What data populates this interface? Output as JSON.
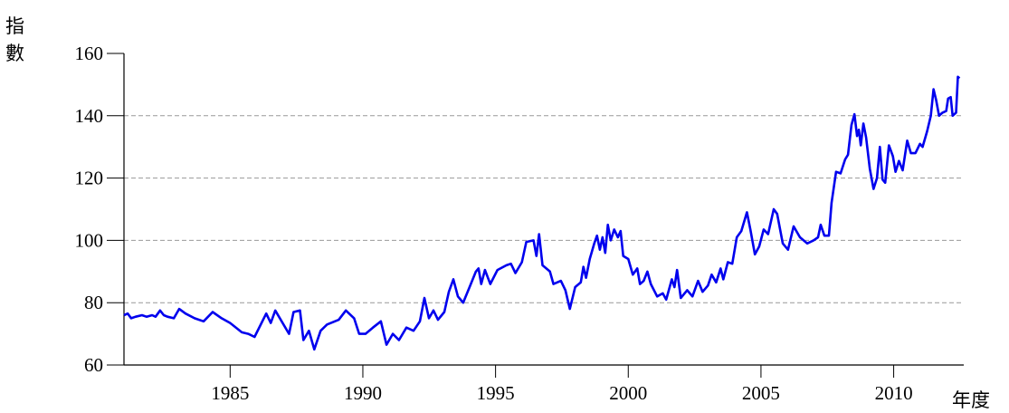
{
  "chart_data": {
    "type": "line",
    "y_label": "指數",
    "x_label": "年度",
    "x": [
      1981.0,
      1981.14,
      1981.27,
      1981.44,
      1981.68,
      1981.85,
      1982.06,
      1982.19,
      1982.36,
      1982.5,
      1982.64,
      1982.88,
      1983.08,
      1983.32,
      1983.66,
      1984.0,
      1984.34,
      1984.68,
      1985.0,
      1985.44,
      1985.68,
      1985.92,
      1986.36,
      1986.53,
      1986.7,
      1987.22,
      1987.39,
      1987.63,
      1987.76,
      1987.97,
      1988.17,
      1988.41,
      1988.65,
      1989.09,
      1989.36,
      1989.67,
      1989.86,
      1990.1,
      1990.38,
      1990.68,
      1990.89,
      1991.13,
      1991.36,
      1991.64,
      1991.91,
      1992.15,
      1992.32,
      1992.49,
      1992.66,
      1992.83,
      1993.07,
      1993.24,
      1993.41,
      1993.58,
      1993.78,
      1994.02,
      1994.26,
      1994.36,
      1994.46,
      1994.6,
      1994.8,
      1995.07,
      1995.41,
      1995.58,
      1995.75,
      1995.99,
      1996.16,
      1996.43,
      1996.54,
      1996.64,
      1996.77,
      1997.05,
      1997.18,
      1997.46,
      1997.63,
      1997.8,
      1998.0,
      1998.21,
      1998.31,
      1998.41,
      1998.55,
      1998.72,
      1998.82,
      1998.93,
      1999.03,
      1999.13,
      1999.23,
      1999.34,
      1999.47,
      1999.61,
      1999.71,
      1999.81,
      2000.0,
      2000.17,
      2000.34,
      2000.44,
      2000.58,
      2000.72,
      2000.85,
      2001.09,
      2001.3,
      2001.43,
      2001.64,
      2001.74,
      2001.84,
      2001.98,
      2002.22,
      2002.42,
      2002.63,
      2002.8,
      2003.0,
      2003.14,
      2003.31,
      2003.48,
      2003.58,
      2003.75,
      2003.92,
      2004.09,
      2004.26,
      2004.47,
      2004.6,
      2004.77,
      2004.93,
      2005.1,
      2005.27,
      2005.48,
      2005.61,
      2005.82,
      2006.02,
      2006.23,
      2006.47,
      2006.74,
      2006.98,
      2007.15,
      2007.25,
      2007.39,
      2007.56,
      2007.66,
      2007.83,
      2008.0,
      2008.17,
      2008.28,
      2008.41,
      2008.52,
      2008.62,
      2008.69,
      2008.76,
      2008.86,
      2008.96,
      2009.1,
      2009.24,
      2009.37,
      2009.48,
      2009.58,
      2009.68,
      2009.82,
      2009.97,
      2010.07,
      2010.2,
      2010.34,
      2010.51,
      2010.65,
      2010.82,
      2010.99,
      2011.09,
      2011.26,
      2011.4,
      2011.5,
      2011.6,
      2011.71,
      2011.84,
      2011.98,
      2012.05,
      2012.15,
      2012.22,
      2012.35,
      2012.42,
      2012.48
    ],
    "series": [
      {
        "color": "#0000ee",
        "values": [
          76,
          76.5,
          75,
          75.5,
          76,
          75.5,
          76,
          75.5,
          77.5,
          76,
          75.5,
          75,
          78,
          76.5,
          75,
          74,
          77,
          75,
          73.5,
          70.5,
          70,
          69,
          76.5,
          73.5,
          77.5,
          70,
          77,
          77.5,
          68,
          71,
          65,
          71,
          73,
          74.5,
          77.5,
          75,
          70,
          70,
          72,
          74,
          66.5,
          70,
          68,
          72,
          71,
          74,
          81.5,
          75,
          77.5,
          74.5,
          77,
          83.5,
          87.5,
          82,
          80,
          85,
          90,
          91,
          86,
          90.5,
          86,
          90.5,
          92,
          92.5,
          89.5,
          93,
          99.5,
          100,
          95,
          102,
          92,
          90,
          86,
          87,
          84,
          78,
          85,
          86.5,
          91.5,
          88,
          94,
          99,
          101.5,
          97,
          101,
          96,
          105,
          100,
          103.5,
          101,
          103,
          95,
          94,
          89,
          91,
          86,
          87,
          90,
          86,
          82,
          83,
          81,
          87.5,
          85,
          90.5,
          81.5,
          84,
          82,
          87,
          83.5,
          85.5,
          89,
          86.5,
          91,
          87.5,
          93,
          92.5,
          101,
          103,
          109,
          103.5,
          95.5,
          98,
          103.5,
          102,
          110,
          108.5,
          99,
          97,
          104.5,
          101,
          99,
          100,
          101,
          105,
          101.5,
          101.5,
          112,
          122,
          121.5,
          126,
          127.5,
          137,
          140.5,
          133.5,
          135.5,
          130.5,
          137.5,
          133,
          123,
          116.5,
          120,
          130,
          119.5,
          118.5,
          130.5,
          127,
          122,
          125.5,
          122.5,
          132,
          128,
          128,
          131,
          130,
          135,
          140,
          148.5,
          145,
          140,
          141,
          141.5,
          145.5,
          146,
          140,
          141,
          152.5,
          152
        ]
      }
    ],
    "xlim": [
      1981,
      2012.64
    ],
    "xticks": [
      1985,
      1990,
      1995,
      2000,
      2005,
      2010
    ],
    "ylim": [
      60,
      160
    ],
    "yticks": [
      60,
      80,
      100,
      120,
      140,
      160
    ],
    "grid": true
  }
}
